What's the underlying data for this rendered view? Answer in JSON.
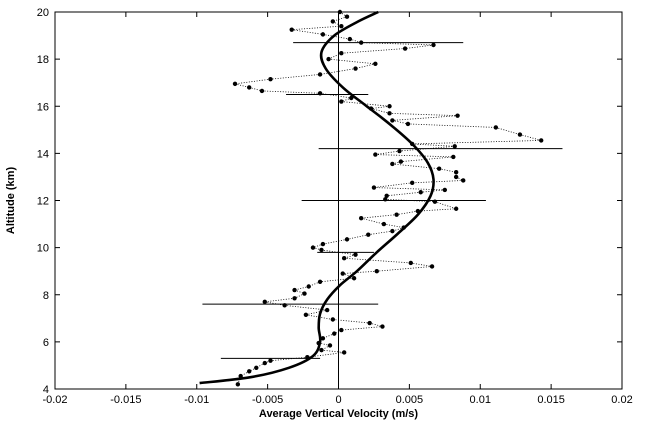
{
  "chart_data": {
    "type": "scatter",
    "xlabel": "Average Vertical Velocity (m/s)",
    "ylabel": "Altitude (km)",
    "xlim": [
      -0.02,
      0.02
    ],
    "ylim": [
      4,
      20
    ],
    "xticks": [
      -0.02,
      -0.015,
      -0.01,
      -0.005,
      0,
      0.005,
      0.01,
      0.015,
      0.02
    ],
    "xtick_labels": [
      "-0.02",
      "-0.015",
      "-0.01",
      "-0.005",
      "0",
      "0.005",
      "0.01",
      "0.015",
      "0.02"
    ],
    "yticks": [
      4,
      6,
      8,
      10,
      12,
      14,
      16,
      18,
      20
    ],
    "ytick_labels": [
      "4",
      "6",
      "8",
      "10",
      "12",
      "14",
      "16",
      "18",
      "20"
    ],
    "grid": false,
    "reference_line_x": 0,
    "observations": [
      {
        "x": 0.0001,
        "y": 20.0
      },
      {
        "x": 0.0006,
        "y": 19.8
      },
      {
        "x": -0.0004,
        "y": 19.6
      },
      {
        "x": 0.0002,
        "y": 19.4
      },
      {
        "x": -0.0033,
        "y": 19.25
      },
      {
        "x": -0.0011,
        "y": 19.05
      },
      {
        "x": 0.0008,
        "y": 18.85
      },
      {
        "x": 0.0016,
        "y": 18.7
      },
      {
        "x": 0.0067,
        "y": 18.6
      },
      {
        "x": 0.0047,
        "y": 18.45
      },
      {
        "x": 0.0002,
        "y": 18.25
      },
      {
        "x": -0.0007,
        "y": 18.0
      },
      {
        "x": 0.0026,
        "y": 17.8
      },
      {
        "x": 0.0012,
        "y": 17.6
      },
      {
        "x": -0.0013,
        "y": 17.35
      },
      {
        "x": -0.0048,
        "y": 17.15
      },
      {
        "x": -0.0073,
        "y": 16.95
      },
      {
        "x": -0.0063,
        "y": 16.8
      },
      {
        "x": -0.0054,
        "y": 16.65
      },
      {
        "x": -0.0013,
        "y": 16.55
      },
      {
        "x": 0.0009,
        "y": 16.35
      },
      {
        "x": 0.0002,
        "y": 16.2
      },
      {
        "x": 0.0036,
        "y": 16.0
      },
      {
        "x": 0.0023,
        "y": 15.9
      },
      {
        "x": 0.0036,
        "y": 15.7
      },
      {
        "x": 0.0084,
        "y": 15.6
      },
      {
        "x": 0.0038,
        "y": 15.4
      },
      {
        "x": 0.0049,
        "y": 15.25
      },
      {
        "x": 0.0111,
        "y": 15.1
      },
      {
        "x": 0.0128,
        "y": 14.8
      },
      {
        "x": 0.0143,
        "y": 14.55
      },
      {
        "x": 0.0052,
        "y": 14.4
      },
      {
        "x": 0.0082,
        "y": 14.3
      },
      {
        "x": 0.0043,
        "y": 14.1
      },
      {
        "x": 0.0026,
        "y": 13.95
      },
      {
        "x": 0.0081,
        "y": 13.85
      },
      {
        "x": 0.0044,
        "y": 13.65
      },
      {
        "x": 0.0038,
        "y": 13.55
      },
      {
        "x": 0.0071,
        "y": 13.35
      },
      {
        "x": 0.0083,
        "y": 13.2
      },
      {
        "x": 0.0083,
        "y": 13.0
      },
      {
        "x": 0.0088,
        "y": 12.85
      },
      {
        "x": 0.0052,
        "y": 12.75
      },
      {
        "x": 0.0025,
        "y": 12.55
      },
      {
        "x": 0.0075,
        "y": 12.45
      },
      {
        "x": 0.0058,
        "y": 12.35
      },
      {
        "x": 0.0034,
        "y": 12.2
      },
      {
        "x": 0.0033,
        "y": 12.05
      },
      {
        "x": 0.0068,
        "y": 11.95
      },
      {
        "x": 0.0083,
        "y": 11.65
      },
      {
        "x": 0.0056,
        "y": 11.55
      },
      {
        "x": 0.0041,
        "y": 11.4
      },
      {
        "x": 0.0016,
        "y": 11.25
      },
      {
        "x": 0.0032,
        "y": 11.0
      },
      {
        "x": 0.0046,
        "y": 10.85
      },
      {
        "x": 0.0038,
        "y": 10.7
      },
      {
        "x": 0.0021,
        "y": 10.55
      },
      {
        "x": 0.0006,
        "y": 10.35
      },
      {
        "x": -0.0011,
        "y": 10.15
      },
      {
        "x": -0.0018,
        "y": 10.0
      },
      {
        "x": -0.0012,
        "y": 9.9
      },
      {
        "x": 0.0012,
        "y": 9.7
      },
      {
        "x": 0.0004,
        "y": 9.55
      },
      {
        "x": 0.0051,
        "y": 9.35
      },
      {
        "x": 0.0066,
        "y": 9.2
      },
      {
        "x": 0.0027,
        "y": 9.0
      },
      {
        "x": 0.0003,
        "y": 8.9
      },
      {
        "x": 0.0011,
        "y": 8.7
      },
      {
        "x": -0.0013,
        "y": 8.55
      },
      {
        "x": -0.0021,
        "y": 8.35
      },
      {
        "x": -0.0031,
        "y": 8.2
      },
      {
        "x": -0.0024,
        "y": 8.05
      },
      {
        "x": -0.0031,
        "y": 7.85
      },
      {
        "x": -0.0052,
        "y": 7.7
      },
      {
        "x": -0.0038,
        "y": 7.55
      },
      {
        "x": -0.0008,
        "y": 7.35
      },
      {
        "x": -0.0023,
        "y": 7.15
      },
      {
        "x": -0.0004,
        "y": 6.95
      },
      {
        "x": 0.0022,
        "y": 6.8
      },
      {
        "x": 0.0031,
        "y": 6.65
      },
      {
        "x": 0.0002,
        "y": 6.5
      },
      {
        "x": -0.0003,
        "y": 6.35
      },
      {
        "x": -0.0011,
        "y": 6.15
      },
      {
        "x": -0.0014,
        "y": 5.95
      },
      {
        "x": -0.0006,
        "y": 5.85
      },
      {
        "x": -0.0012,
        "y": 5.65
      },
      {
        "x": 0.0004,
        "y": 5.55
      },
      {
        "x": -0.0022,
        "y": 5.35
      },
      {
        "x": -0.0048,
        "y": 5.2
      },
      {
        "x": -0.0052,
        "y": 5.1
      },
      {
        "x": -0.0058,
        "y": 4.9
      },
      {
        "x": -0.0063,
        "y": 4.75
      },
      {
        "x": -0.0069,
        "y": 4.55
      },
      {
        "x": -0.0071,
        "y": 4.2
      }
    ],
    "error_bars": [
      {
        "y": 18.7,
        "xmin": -0.0032,
        "xmax": 0.0088
      },
      {
        "y": 16.5,
        "xmin": -0.0037,
        "xmax": 0.0021
      },
      {
        "y": 14.2,
        "xmin": -0.0014,
        "xmax": 0.0158
      },
      {
        "y": 12.0,
        "xmin": -0.0026,
        "xmax": 0.0104
      },
      {
        "y": 9.8,
        "xmin": -0.0015,
        "xmax": 0.0025
      },
      {
        "y": 7.6,
        "xmin": -0.0096,
        "xmax": 0.0028
      },
      {
        "y": 5.3,
        "xmin": -0.0083,
        "xmax": -0.0013
      }
    ],
    "fit_curve": [
      {
        "x": -0.0098,
        "y": 4.25
      },
      {
        "x": -0.0062,
        "y": 4.5
      },
      {
        "x": -0.0035,
        "y": 4.9
      },
      {
        "x": -0.0018,
        "y": 5.4
      },
      {
        "x": -0.0013,
        "y": 6.0
      },
      {
        "x": -0.0014,
        "y": 6.6
      },
      {
        "x": -0.0013,
        "y": 7.2
      },
      {
        "x": -0.0008,
        "y": 7.8
      },
      {
        "x": 0.0001,
        "y": 8.4
      },
      {
        "x": 0.0013,
        "y": 9.0
      },
      {
        "x": 0.0027,
        "y": 9.8
      },
      {
        "x": 0.0042,
        "y": 10.6
      },
      {
        "x": 0.0056,
        "y": 11.4
      },
      {
        "x": 0.0065,
        "y": 12.2
      },
      {
        "x": 0.0067,
        "y": 12.9
      },
      {
        "x": 0.0063,
        "y": 13.6
      },
      {
        "x": 0.0052,
        "y": 14.4
      },
      {
        "x": 0.0037,
        "y": 15.2
      },
      {
        "x": 0.002,
        "y": 16.0
      },
      {
        "x": 0.0003,
        "y": 16.8
      },
      {
        "x": -0.0009,
        "y": 17.6
      },
      {
        "x": -0.0012,
        "y": 18.3
      },
      {
        "x": -0.0003,
        "y": 19.0
      },
      {
        "x": 0.0014,
        "y": 19.6
      },
      {
        "x": 0.0028,
        "y": 20.0
      }
    ]
  }
}
